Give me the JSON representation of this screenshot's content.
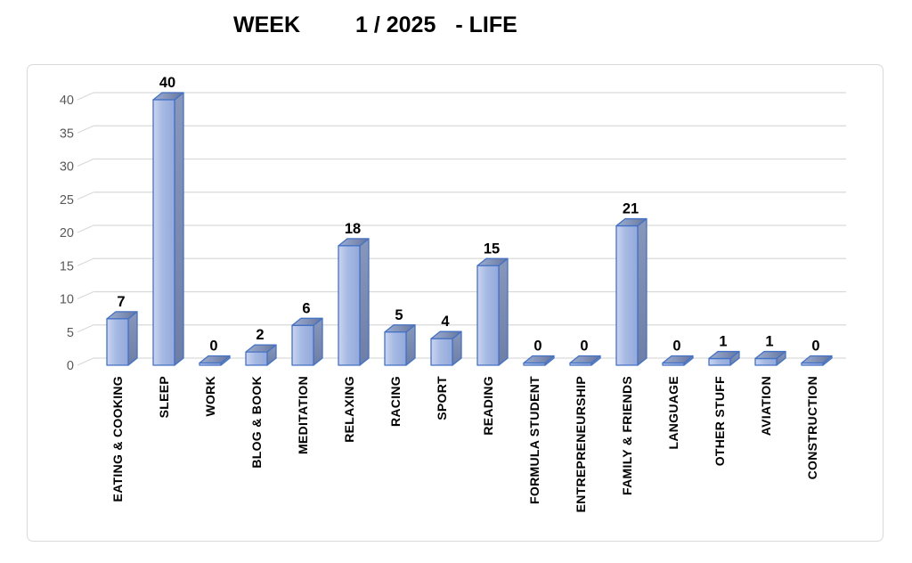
{
  "header": {
    "title_part1": "WEEK",
    "title_part2": "1 / 2025",
    "title_part3": "- LIFE"
  },
  "chart_data": {
    "type": "bar",
    "style": "3d-column",
    "title": "WEEK 1 / 2025 - LIFE",
    "categories": [
      "EATING & COOKING",
      "SLEEP",
      "WORK",
      "BLOG & BOOK",
      "MEDITATION",
      "RELAXING",
      "RACING",
      "SPORT",
      "READING",
      "FORMULA STUDENT",
      "ENTREPRENEURSHIP",
      "FAMILY & FRIENDS",
      "LANGUAGE",
      "OTHER STUFF",
      "AVIATION",
      "CONSTRUCTION"
    ],
    "values": [
      7,
      40,
      0,
      2,
      6,
      18,
      5,
      4,
      15,
      0,
      0,
      21,
      0,
      1,
      1,
      0
    ],
    "xlabel": "",
    "ylabel": "",
    "ylim": [
      0,
      40
    ],
    "yticks": [
      0,
      5,
      10,
      15,
      20,
      25,
      30,
      35,
      40
    ],
    "grid": true,
    "legend": "none",
    "data_labels": true,
    "colors": {
      "bar_front_light": "#C9D4EF",
      "bar_front": "#A6B9E3",
      "bar_front_dark": "#93A9DC",
      "bar_top_light": "#9FAFD3",
      "bar_top_dark": "#64749C",
      "bar_side_light": "#8897BA",
      "bar_side_dark": "#6E7EA6",
      "bar_border": "#4472C4",
      "gridline": "#D9D9D9",
      "axis_text": "#595959",
      "label_text": "#000000",
      "chart_border": "#D9D9D9",
      "background": "#FFFFFF"
    }
  }
}
